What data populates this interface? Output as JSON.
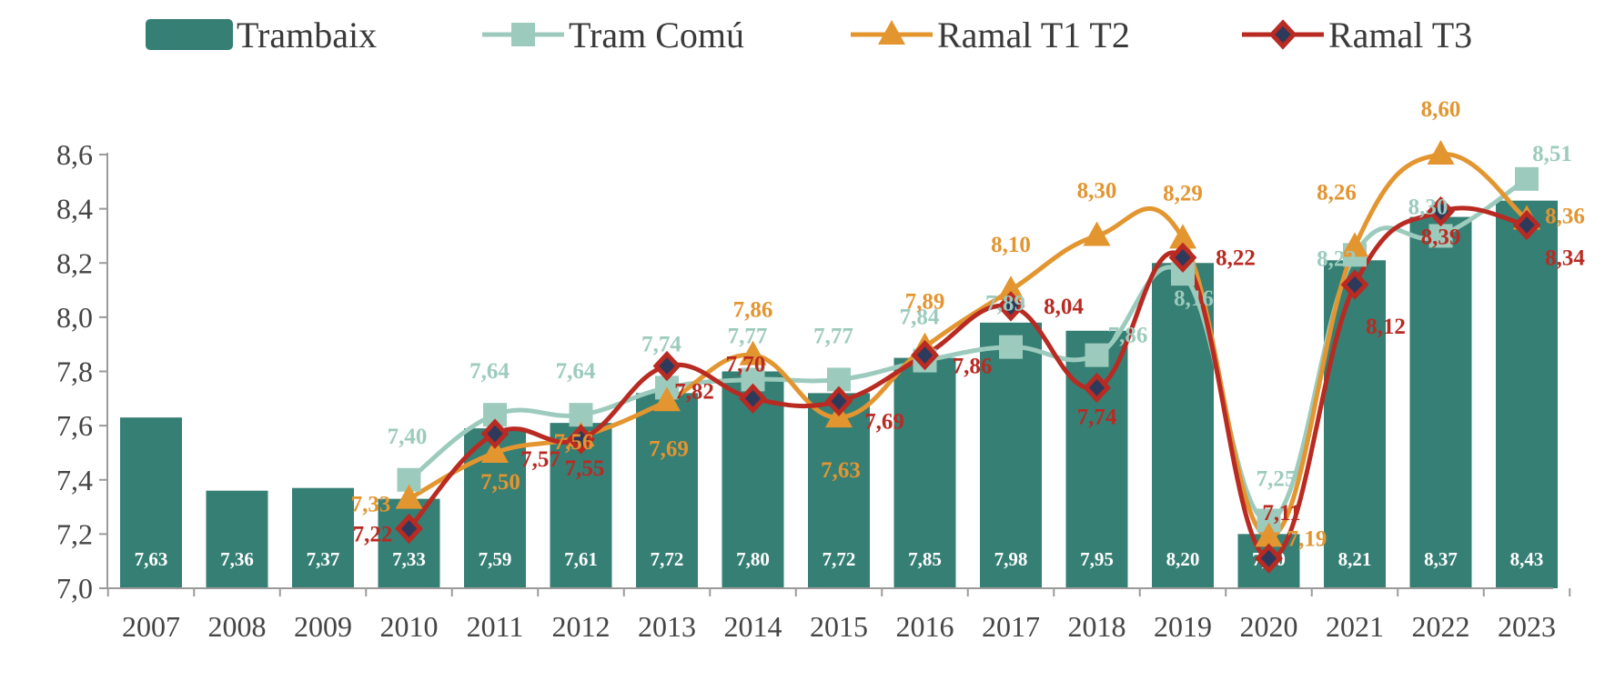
{
  "chart_data": {
    "type": "bar",
    "title": "",
    "xlabel": "",
    "ylabel": "",
    "categories": [
      "2007",
      "2008",
      "2009",
      "2010",
      "2011",
      "2012",
      "2013",
      "2014",
      "2015",
      "2016",
      "2017",
      "2018",
      "2019",
      "2020",
      "2021",
      "2022",
      "2023"
    ],
    "ylim": [
      7.0,
      8.6
    ],
    "yticks": [
      "7,0",
      "7,2",
      "7,4",
      "7,6",
      "7,8",
      "8,0",
      "8,2",
      "8,4",
      "8,6"
    ],
    "grid": false,
    "legend_position": "top",
    "series": [
      {
        "name": "Trambaix",
        "kind": "bar",
        "color": "#367f74",
        "values": [
          7.63,
          7.36,
          7.37,
          7.33,
          7.59,
          7.61,
          7.72,
          7.8,
          7.72,
          7.85,
          7.98,
          7.95,
          8.2,
          7.2,
          8.21,
          8.37,
          8.43
        ],
        "labels": [
          "7,63",
          "7,36",
          "7,37",
          "7,33",
          "7,59",
          "7,61",
          "7,72",
          "7,80",
          "7,72",
          "7,85",
          "7,98",
          "7,95",
          "8,20",
          "7,20",
          "8,21",
          "8,37",
          "8,43"
        ]
      },
      {
        "name": "Tram Comú",
        "kind": "line",
        "marker": "square",
        "color": "#9ccbbd",
        "values": [
          null,
          null,
          null,
          7.4,
          7.64,
          7.64,
          7.74,
          7.77,
          7.77,
          7.84,
          7.89,
          7.86,
          8.16,
          7.25,
          8.23,
          8.3,
          8.51
        ],
        "labels": [
          null,
          null,
          null,
          "7,40",
          "7,64",
          "7,64",
          "7,74",
          "7,77",
          "7,77",
          "7,84",
          "7,89",
          "7,86",
          "8,16",
          "7,25",
          "8,23",
          "8,30",
          "8,51"
        ]
      },
      {
        "name": "Ramal T1 T2",
        "kind": "line",
        "marker": "triangle",
        "color": "#e39530",
        "values": [
          null,
          null,
          null,
          7.33,
          7.5,
          7.56,
          7.69,
          7.86,
          7.63,
          7.89,
          8.1,
          8.3,
          8.29,
          7.19,
          8.26,
          8.6,
          8.36
        ],
        "labels": [
          null,
          null,
          null,
          "7,33",
          "7,50",
          "7,56",
          "7,69",
          "7,86",
          "7,63",
          "7,89",
          "8,10",
          "8,30",
          "8,29",
          "7,19",
          "8,26",
          "8,60",
          "8,36"
        ]
      },
      {
        "name": "Ramal T3",
        "kind": "line",
        "marker": "diamond",
        "color": "#b82a22",
        "marker_fill": "#2e3a5c",
        "values": [
          null,
          null,
          null,
          7.22,
          7.57,
          7.55,
          7.82,
          7.7,
          7.69,
          7.86,
          8.04,
          7.74,
          8.22,
          7.11,
          8.12,
          8.39,
          8.34
        ],
        "labels": [
          null,
          null,
          null,
          "7,22",
          "7,57",
          "7,55",
          "7,82",
          "7,70",
          "7,69",
          "7,86",
          "8,04",
          "7,74",
          "8,22",
          "7,11",
          "8,12",
          "8,39",
          "8,34"
        ]
      }
    ]
  }
}
